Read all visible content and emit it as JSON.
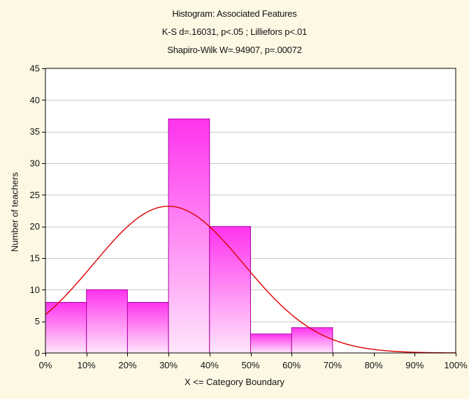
{
  "chart_data": {
    "type": "bar",
    "title": "Histogram: Associated Features",
    "subtitle_lines": [
      "K-S d=.16031, p<.05 ; Lilliefors p<.01",
      "Shapiro-Wilk W=.94907, p=.00072"
    ],
    "xlabel": "X <= Category Boundary",
    "ylabel": "Number of teachers",
    "bin_edges": [
      0,
      10,
      20,
      30,
      40,
      50,
      60,
      70
    ],
    "values": [
      8,
      10,
      8,
      37,
      20,
      3,
      4
    ],
    "xlim": [
      0,
      100
    ],
    "ylim": [
      0,
      45
    ],
    "x_ticks": [
      "0%",
      "10%",
      "20%",
      "30%",
      "40%",
      "50%",
      "60%",
      "70%",
      "80%",
      "90%",
      "100%"
    ],
    "y_ticks": [
      0,
      5,
      10,
      15,
      20,
      25,
      30,
      35,
      40,
      45
    ],
    "grid": true,
    "legend": "none",
    "fit_curve": {
      "type": "normal",
      "mean": 30,
      "sd": 18.3,
      "peak_value": 23.2
    },
    "colors": {
      "background": "#fdf8e4",
      "plot_background": "#ffffff",
      "bar_top": "#ff33ee",
      "bar_bottom": "#ffe6fb",
      "bar_stroke": "#b000a8",
      "curve": "#e00000",
      "grid": "#c8c8c8"
    }
  }
}
